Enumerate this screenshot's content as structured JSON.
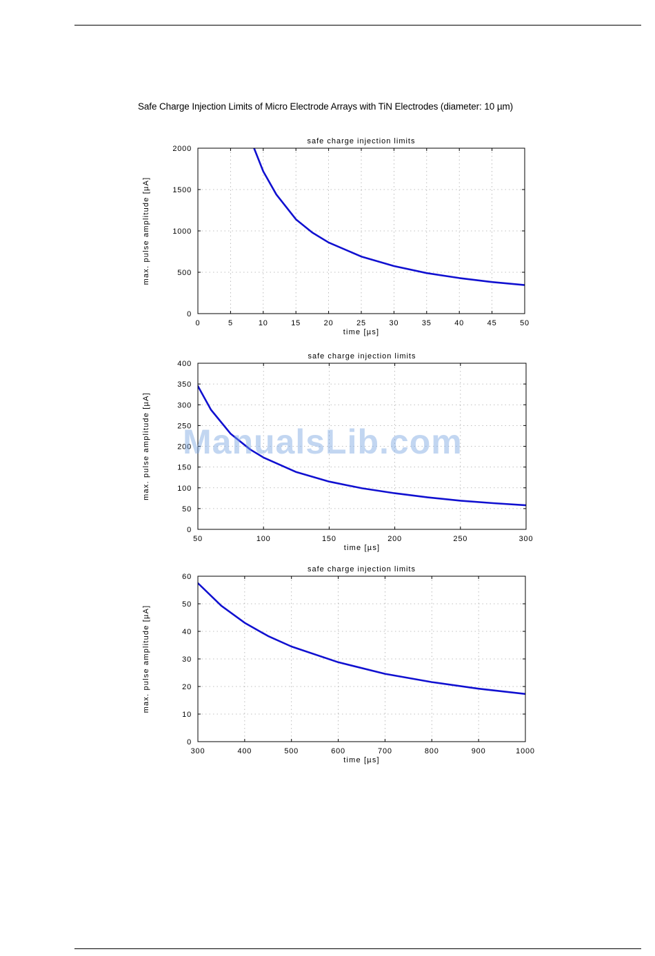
{
  "page": {
    "title": "Safe Charge Injection Limits of Micro Electrode Arrays with TiN Electrodes (diameter: 10 µm)",
    "watermark": "ManualsLib.com"
  },
  "colors": {
    "curve": "#1010d0",
    "grid": "#aaaaaa",
    "frame": "#000000"
  },
  "chart_data": [
    {
      "type": "line",
      "title": "safe charge injection limits",
      "xlabel": "time [µs]",
      "ylabel": "max. pulse amplitude [µA]",
      "xlim": [
        0,
        50
      ],
      "ylim": [
        0,
        2000
      ],
      "xticks": [
        0,
        5,
        10,
        15,
        20,
        25,
        30,
        35,
        40,
        45,
        50
      ],
      "yticks": [
        0,
        500,
        1000,
        1500,
        2000
      ],
      "grid": true,
      "series": [
        {
          "x": [
            8.6,
            10,
            12,
            15,
            17.5,
            20,
            25,
            30,
            35,
            40,
            45,
            50
          ],
          "y": [
            2000,
            1720,
            1440,
            1140,
            980,
            860,
            690,
            575,
            490,
            430,
            382,
            345
          ]
        }
      ]
    },
    {
      "type": "line",
      "title": "safe charge injection limits",
      "xlabel": "time [µs]",
      "ylabel": "max. pulse amplitude [µA]",
      "xlim": [
        50,
        300
      ],
      "ylim": [
        0,
        400
      ],
      "xticks": [
        50,
        100,
        150,
        200,
        250,
        300
      ],
      "yticks": [
        0,
        50,
        100,
        150,
        200,
        250,
        300,
        350,
        400
      ],
      "grid": true,
      "series": [
        {
          "x": [
            50,
            60,
            75,
            90,
            100,
            125,
            150,
            175,
            200,
            225,
            250,
            275,
            300
          ],
          "y": [
            345,
            288,
            230,
            192,
            173,
            138,
            115,
            99,
            87,
            77,
            69,
            63,
            58
          ]
        }
      ]
    },
    {
      "type": "line",
      "title": "safe charge injection limits",
      "xlabel": "time [µs]",
      "ylabel": "max. pulse amplitude [µA]",
      "xlim": [
        300,
        1000
      ],
      "ylim": [
        0,
        60
      ],
      "xticks": [
        300,
        400,
        500,
        600,
        700,
        800,
        900,
        1000
      ],
      "yticks": [
        0,
        10,
        20,
        30,
        40,
        50,
        60
      ],
      "grid": true,
      "series": [
        {
          "x": [
            300,
            350,
            400,
            450,
            500,
            600,
            700,
            800,
            900,
            1000
          ],
          "y": [
            57.5,
            49.3,
            43.1,
            38.3,
            34.5,
            28.8,
            24.6,
            21.6,
            19.2,
            17.3
          ]
        }
      ]
    }
  ]
}
